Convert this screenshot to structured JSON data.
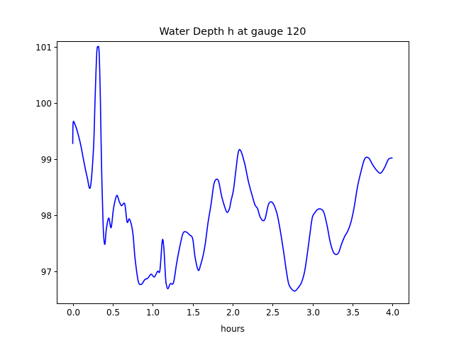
{
  "chart_data": {
    "type": "line",
    "title": "Water Depth h at gauge 120",
    "xlabel": "hours",
    "ylabel": "",
    "xlim": [
      -0.2,
      4.2
    ],
    "ylim": [
      96.43,
      101.1
    ],
    "x_ticks": [
      0.0,
      0.5,
      1.0,
      1.5,
      2.0,
      2.5,
      3.0,
      3.5,
      4.0
    ],
    "x_tick_labels": [
      "0.0",
      "0.5",
      "1.0",
      "1.5",
      "2.0",
      "2.5",
      "3.0",
      "3.5",
      "4.0"
    ],
    "y_ticks": [
      97,
      98,
      99,
      100,
      101
    ],
    "y_tick_labels": [
      "97",
      "98",
      "99",
      "100",
      "101"
    ],
    "grid": false,
    "legend": "none",
    "series": [
      {
        "color": "#0000ff",
        "x": [
          0.0,
          0.005,
          0.03,
          0.06,
          0.1,
          0.14,
          0.18,
          0.22,
          0.26,
          0.28,
          0.3,
          0.315,
          0.33,
          0.345,
          0.36,
          0.38,
          0.4,
          0.42,
          0.45,
          0.48,
          0.51,
          0.55,
          0.58,
          0.61,
          0.65,
          0.68,
          0.71,
          0.75,
          0.78,
          0.82,
          0.86,
          0.9,
          0.94,
          0.98,
          1.02,
          1.06,
          1.09,
          1.12,
          1.14,
          1.16,
          1.17,
          1.19,
          1.22,
          1.26,
          1.3,
          1.34,
          1.38,
          1.42,
          1.46,
          1.5,
          1.53,
          1.57,
          1.6,
          1.63,
          1.66,
          1.69,
          1.73,
          1.77,
          1.82,
          1.86,
          1.9,
          1.93,
          1.96,
          1.98,
          2.01,
          2.04,
          2.07,
          2.1,
          2.15,
          2.2,
          2.25,
          2.28,
          2.31,
          2.35,
          2.4,
          2.45,
          2.5,
          2.55,
          2.58,
          2.61,
          2.64,
          2.67,
          2.7,
          2.74,
          2.78,
          2.82,
          2.86,
          2.9,
          2.94,
          2.98,
          3.0,
          3.03,
          3.06,
          3.1,
          3.14,
          3.18,
          3.22,
          3.26,
          3.3,
          3.33,
          3.36,
          3.4,
          3.44,
          3.48,
          3.52,
          3.56,
          3.6,
          3.65,
          3.7,
          3.75,
          3.8,
          3.85,
          3.9,
          3.95,
          4.0
        ],
        "y": [
          99.27,
          99.65,
          99.61,
          99.48,
          99.25,
          98.95,
          98.68,
          98.5,
          99.2,
          100.1,
          100.88,
          101.0,
          100.9,
          100.1,
          98.9,
          97.82,
          97.48,
          97.75,
          97.95,
          97.78,
          98.12,
          98.35,
          98.25,
          98.17,
          98.2,
          97.88,
          97.93,
          97.7,
          97.22,
          96.82,
          96.77,
          96.85,
          96.88,
          96.95,
          96.9,
          97.0,
          97.02,
          97.55,
          97.4,
          96.9,
          96.77,
          96.69,
          96.78,
          96.8,
          97.15,
          97.45,
          97.68,
          97.7,
          97.65,
          97.58,
          97.25,
          97.02,
          97.12,
          97.28,
          97.52,
          97.85,
          98.2,
          98.58,
          98.62,
          98.35,
          98.15,
          98.05,
          98.12,
          98.26,
          98.45,
          98.8,
          99.12,
          99.15,
          98.92,
          98.58,
          98.32,
          98.18,
          98.12,
          97.95,
          97.92,
          98.2,
          98.22,
          98.05,
          97.85,
          97.6,
          97.32,
          97.02,
          96.78,
          96.68,
          96.65,
          96.71,
          96.8,
          97.0,
          97.38,
          97.82,
          97.98,
          98.05,
          98.1,
          98.11,
          98.05,
          97.82,
          97.52,
          97.34,
          97.3,
          97.35,
          97.48,
          97.62,
          97.72,
          97.88,
          98.15,
          98.5,
          98.75,
          99.0,
          99.02,
          98.9,
          98.8,
          98.75,
          98.85,
          99.0,
          99.02
        ]
      }
    ]
  }
}
